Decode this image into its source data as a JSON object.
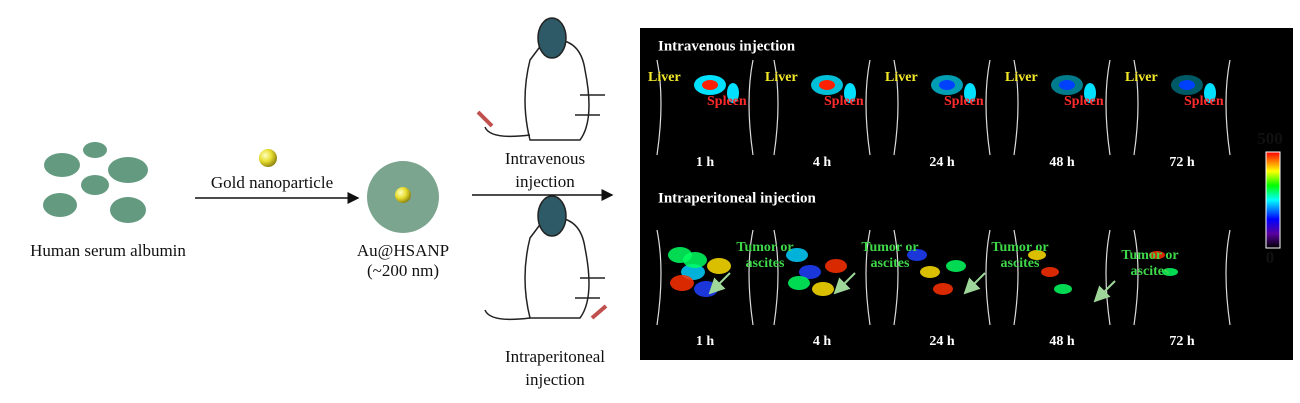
{
  "left": {
    "albumin_label": "Human serum albumin",
    "gold_label": "Gold nanoparticle",
    "product_label": [
      "Au@HSANP",
      "(~200 nm)"
    ],
    "injections": [
      {
        "label": [
          "Intravenous",
          "injection"
        ]
      },
      {
        "label": [
          "Intraperitoneal",
          "injection"
        ]
      }
    ]
  },
  "panel": {
    "rows": [
      {
        "title": "Intravenous injection",
        "frames": [
          {
            "time": "1 h",
            "organs": [
              "Liver",
              "Spleen"
            ]
          },
          {
            "time": "4 h",
            "organs": [
              "Liver",
              "Spleen"
            ]
          },
          {
            "time": "24 h",
            "organs": [
              "Liver",
              "Spleen"
            ]
          },
          {
            "time": "48 h",
            "organs": [
              "Liver",
              "Spleen"
            ]
          },
          {
            "time": "72 h",
            "organs": [
              "Liver",
              "Spleen"
            ]
          }
        ]
      },
      {
        "title": "Intraperitoneal injection",
        "frames": [
          {
            "time": "1 h"
          },
          {
            "time": "4 h"
          },
          {
            "time": "24 h"
          },
          {
            "time": "48 h"
          },
          {
            "time": "72 h"
          }
        ],
        "annotations": [
          [
            "Tumor or",
            "ascites"
          ],
          [
            "Tumor or",
            "ascites"
          ],
          [
            "Tumor or",
            "ascites"
          ],
          [
            "Tumor or",
            "ascites"
          ]
        ]
      }
    ],
    "colorbar": {
      "max": 500,
      "min": 0
    }
  }
}
